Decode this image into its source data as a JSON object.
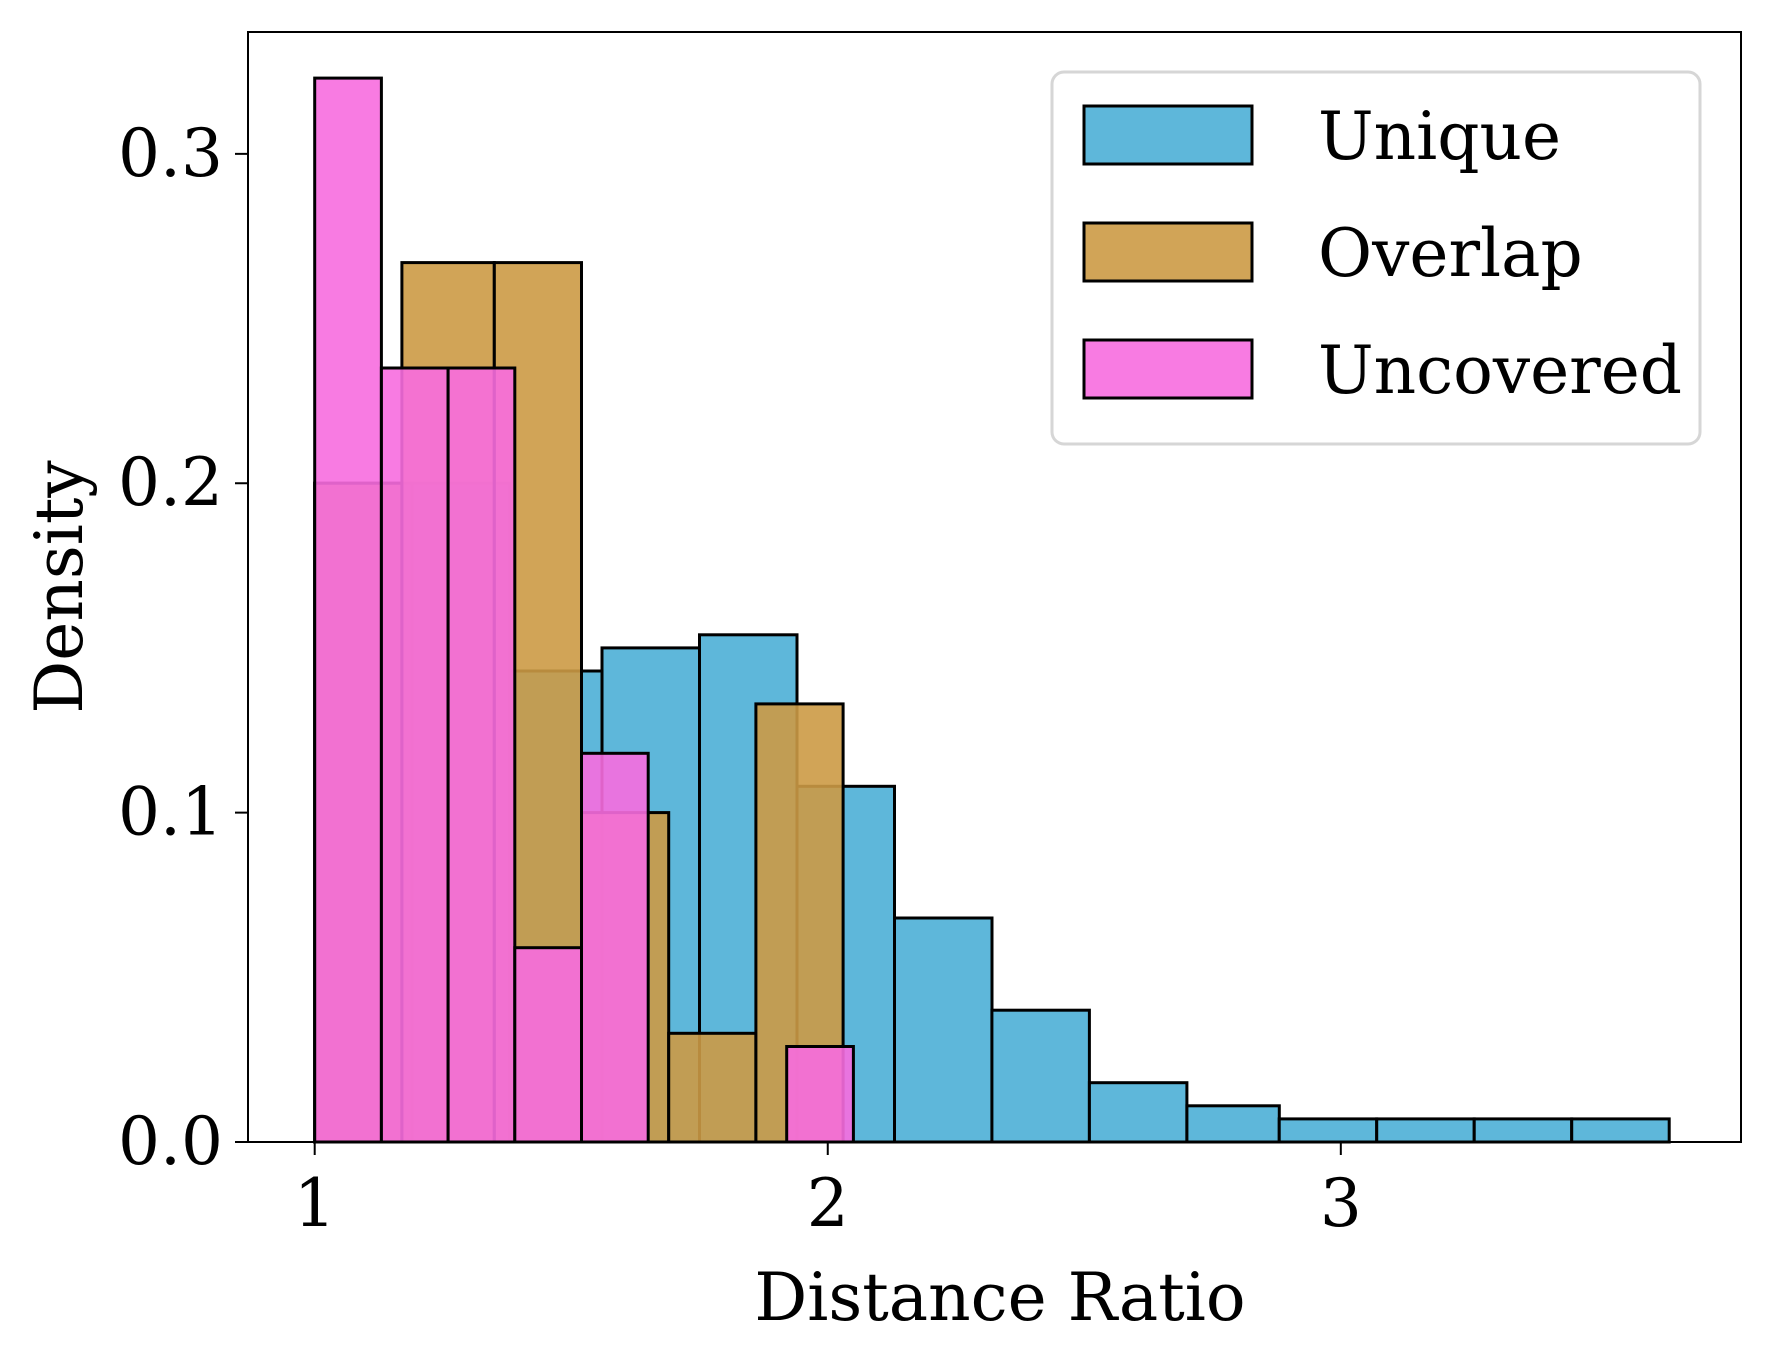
{
  "chart_data": {
    "type": "histogram",
    "xlabel": "Distance Ratio",
    "ylabel": "Density",
    "xlim": [
      0.87,
      3.78
    ],
    "ylim": [
      0,
      0.337
    ],
    "xticks": [
      1,
      2,
      3
    ],
    "yticks": [
      0.0,
      0.1,
      0.2,
      0.3
    ],
    "ytick_labels": [
      "0.0",
      "0.1",
      "0.2",
      "0.3"
    ],
    "grid": false,
    "legend_position": "top-right",
    "series": [
      {
        "name": "Unique",
        "color": "#4dafd6",
        "bins": [
          {
            "x0": 1.0,
            "x1": 1.19,
            "y": 0.2
          },
          {
            "x0": 1.19,
            "x1": 1.38,
            "y": 0.2
          },
          {
            "x0": 1.38,
            "x1": 1.56,
            "y": 0.143
          },
          {
            "x0": 1.56,
            "x1": 1.75,
            "y": 0.15
          },
          {
            "x0": 1.75,
            "x1": 1.94,
            "y": 0.154
          },
          {
            "x0": 1.94,
            "x1": 2.13,
            "y": 0.108
          },
          {
            "x0": 2.13,
            "x1": 2.32,
            "y": 0.068
          },
          {
            "x0": 2.32,
            "x1": 2.51,
            "y": 0.04
          },
          {
            "x0": 2.51,
            "x1": 2.7,
            "y": 0.018
          },
          {
            "x0": 2.7,
            "x1": 2.88,
            "y": 0.011
          },
          {
            "x0": 2.88,
            "x1": 3.07,
            "y": 0.007
          },
          {
            "x0": 3.07,
            "x1": 3.26,
            "y": 0.007
          },
          {
            "x0": 3.26,
            "x1": 3.45,
            "y": 0.007
          },
          {
            "x0": 3.45,
            "x1": 3.64,
            "y": 0.007
          }
        ]
      },
      {
        "name": "Overlap",
        "color": "#cc9a45",
        "bins": [
          {
            "x0": 1.0,
            "x1": 1.17,
            "y": 0.2
          },
          {
            "x0": 1.17,
            "x1": 1.35,
            "y": 0.267
          },
          {
            "x0": 1.35,
            "x1": 1.52,
            "y": 0.267
          },
          {
            "x0": 1.52,
            "x1": 1.69,
            "y": 0.1
          },
          {
            "x0": 1.69,
            "x1": 1.86,
            "y": 0.033
          },
          {
            "x0": 1.86,
            "x1": 2.03,
            "y": 0.133
          }
        ]
      },
      {
        "name": "Uncovered",
        "color": "#f76ddf",
        "bins": [
          {
            "x0": 1.0,
            "x1": 1.13,
            "y": 0.323
          },
          {
            "x0": 1.13,
            "x1": 1.26,
            "y": 0.235
          },
          {
            "x0": 1.26,
            "x1": 1.39,
            "y": 0.235
          },
          {
            "x0": 1.39,
            "x1": 1.52,
            "y": 0.059
          },
          {
            "x0": 1.52,
            "x1": 1.65,
            "y": 0.118
          },
          {
            "x0": 1.92,
            "x1": 2.05,
            "y": 0.029
          }
        ]
      }
    ]
  }
}
